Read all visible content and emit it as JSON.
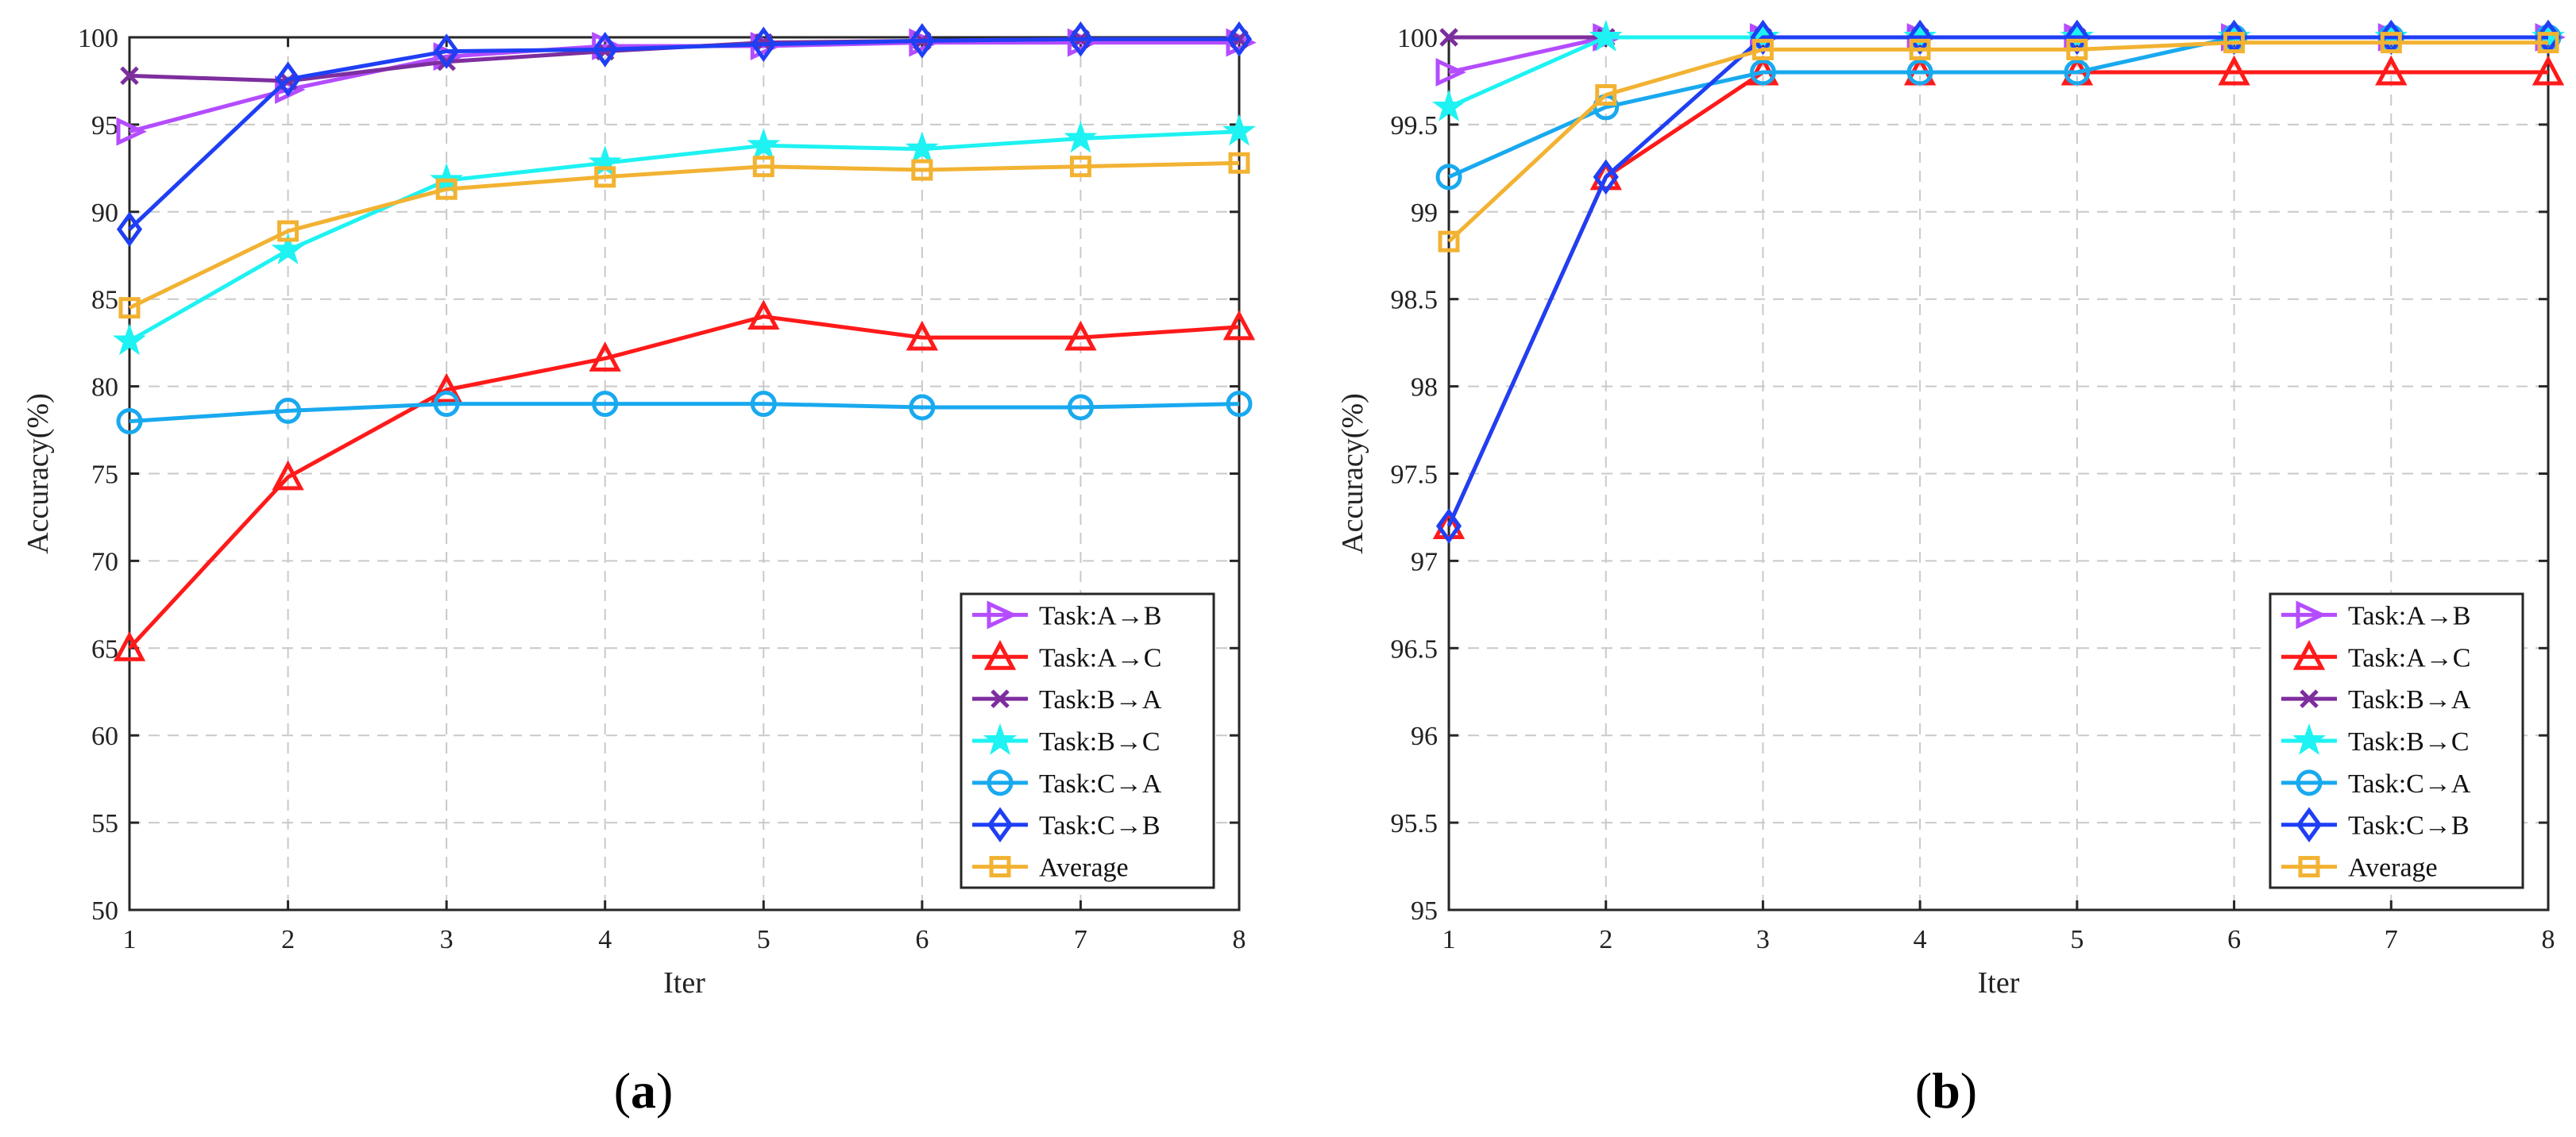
{
  "chart_data": [
    {
      "type": "line",
      "panel_label": "a",
      "title": "",
      "xlabel": "Iter",
      "ylabel": "Accuracy(%)",
      "x": [
        1,
        2,
        3,
        4,
        5,
        6,
        7,
        8
      ],
      "xlim": [
        1,
        8
      ],
      "ylim": [
        50,
        100
      ],
      "xticks": [
        1,
        2,
        3,
        4,
        5,
        6,
        7,
        8
      ],
      "yticks": [
        "50",
        "55",
        "60",
        "65",
        "70",
        "75",
        "80",
        "85",
        "90",
        "95",
        "100"
      ],
      "ytick_values": [
        50,
        55,
        60,
        65,
        70,
        75,
        80,
        85,
        90,
        95,
        100
      ],
      "grid": true,
      "legend_position": "bottom-right",
      "series": [
        {
          "name": "Task:A→B",
          "color": "#b44cff",
          "marker": "triangle-right",
          "values": [
            94.6,
            97.0,
            98.9,
            99.5,
            99.5,
            99.7,
            99.7,
            99.7
          ]
        },
        {
          "name": "Task:A→C",
          "color": "#ff1a1a",
          "marker": "triangle-up",
          "values": [
            65.0,
            74.8,
            79.8,
            81.6,
            84.0,
            82.8,
            82.8,
            83.4
          ]
        },
        {
          "name": "Task:B→A",
          "color": "#7d2e9e",
          "marker": "x",
          "values": [
            97.8,
            97.5,
            98.6,
            99.2,
            99.7,
            99.8,
            99.9,
            99.9
          ]
        },
        {
          "name": "Task:B→C",
          "color": "#1ef2f2",
          "marker": "star",
          "values": [
            82.6,
            87.8,
            91.8,
            92.8,
            93.8,
            93.6,
            94.2,
            94.6
          ]
        },
        {
          "name": "Task:C→A",
          "color": "#19a9ef",
          "marker": "circle",
          "values": [
            78.0,
            78.6,
            79.0,
            79.0,
            79.0,
            78.8,
            78.8,
            79.0
          ]
        },
        {
          "name": "Task:C→B",
          "color": "#1f3ff5",
          "marker": "diamond",
          "values": [
            89.0,
            97.6,
            99.2,
            99.3,
            99.6,
            99.8,
            99.9,
            99.9
          ]
        },
        {
          "name": "Average",
          "color": "#f2b232",
          "marker": "square",
          "values": [
            84.5,
            88.9,
            91.3,
            92.0,
            92.6,
            92.4,
            92.6,
            92.8
          ]
        }
      ]
    },
    {
      "type": "line",
      "panel_label": "b",
      "title": "",
      "xlabel": "Iter",
      "ylabel": "Accuracy(%)",
      "x": [
        1,
        2,
        3,
        4,
        5,
        6,
        7,
        8
      ],
      "xlim": [
        1,
        8
      ],
      "ylim": [
        95,
        100
      ],
      "xticks": [
        1,
        2,
        3,
        4,
        5,
        6,
        7,
        8
      ],
      "yticks": [
        "95",
        "95.5",
        "96",
        "96.5",
        "97",
        "97.5",
        "98",
        "98.5",
        "99",
        "99.5",
        "100"
      ],
      "ytick_values": [
        95,
        95.5,
        96,
        96.5,
        97,
        97.5,
        98,
        98.5,
        99,
        99.5,
        100
      ],
      "grid": true,
      "legend_position": "bottom-right",
      "series": [
        {
          "name": "Task:A→B",
          "color": "#b44cff",
          "marker": "triangle-right",
          "values": [
            99.8,
            100.0,
            100.0,
            100.0,
            100.0,
            100.0,
            100.0,
            100.0
          ]
        },
        {
          "name": "Task:A→C",
          "color": "#ff1a1a",
          "marker": "triangle-up",
          "values": [
            97.2,
            99.2,
            99.8,
            99.8,
            99.8,
            99.8,
            99.8,
            99.8
          ]
        },
        {
          "name": "Task:B→A",
          "color": "#7d2e9e",
          "marker": "x",
          "values": [
            100.0,
            100.0,
            100.0,
            100.0,
            100.0,
            100.0,
            100.0,
            100.0
          ]
        },
        {
          "name": "Task:B→C",
          "color": "#1ef2f2",
          "marker": "star",
          "values": [
            99.6,
            100.0,
            100.0,
            100.0,
            100.0,
            100.0,
            100.0,
            100.0
          ]
        },
        {
          "name": "Task:C→A",
          "color": "#19a9ef",
          "marker": "circle",
          "values": [
            99.2,
            99.6,
            99.8,
            99.8,
            99.8,
            100.0,
            100.0,
            100.0
          ]
        },
        {
          "name": "Task:C→B",
          "color": "#1f3ff5",
          "marker": "diamond",
          "values": [
            97.2,
            99.2,
            100.0,
            100.0,
            100.0,
            100.0,
            100.0,
            100.0
          ]
        },
        {
          "name": "Average",
          "color": "#f2b232",
          "marker": "square",
          "values": [
            98.83,
            99.67,
            99.93,
            99.93,
            99.93,
            99.97,
            99.97,
            99.97
          ]
        }
      ]
    }
  ]
}
